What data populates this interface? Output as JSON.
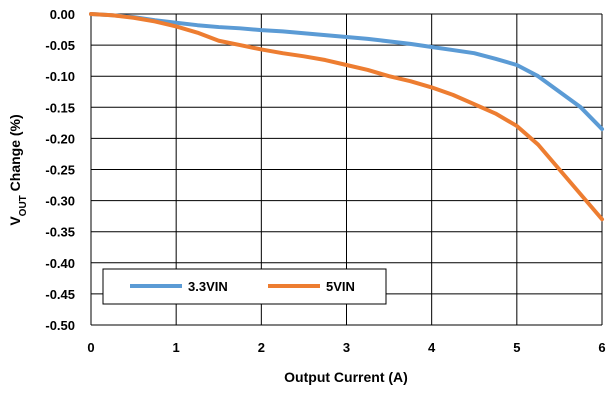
{
  "chart_data": {
    "type": "line",
    "xlabel": "Output Current (A)",
    "ylabel": {
      "prefix": "V",
      "subscript": "OUT",
      "suffix": " Change (%)"
    },
    "xlim": [
      0,
      6
    ],
    "ylim": [
      -0.5,
      0.0
    ],
    "x_ticks": [
      0,
      1,
      2,
      3,
      4,
      5,
      6
    ],
    "y_ticks": [
      0.0,
      -0.05,
      -0.1,
      -0.15,
      -0.2,
      -0.25,
      -0.3,
      -0.35,
      -0.4,
      -0.45,
      -0.5
    ],
    "x_tick_labels": [
      "0",
      "1",
      "2",
      "3",
      "4",
      "5",
      "6"
    ],
    "y_tick_labels": [
      "0.00",
      "-0.05",
      "-0.10",
      "-0.15",
      "-0.20",
      "-0.25",
      "-0.30",
      "-0.35",
      "-0.40",
      "-0.45",
      "-0.50"
    ],
    "grid": true,
    "legend_position": "lower-left",
    "series": [
      {
        "name": "3.3VIN",
        "color": "#5b9bd5",
        "x": [
          0,
          0.25,
          0.5,
          0.75,
          1.0,
          1.25,
          1.5,
          1.75,
          2.0,
          2.25,
          2.5,
          2.75,
          3.0,
          3.25,
          3.5,
          3.75,
          4.0,
          4.25,
          4.5,
          4.75,
          5.0,
          5.25,
          5.5,
          5.75,
          6.0
        ],
        "values": [
          0.0,
          -0.002,
          -0.005,
          -0.01,
          -0.014,
          -0.018,
          -0.021,
          -0.023,
          -0.026,
          -0.028,
          -0.031,
          -0.034,
          -0.037,
          -0.04,
          -0.044,
          -0.048,
          -0.053,
          -0.058,
          -0.063,
          -0.072,
          -0.082,
          -0.1,
          -0.125,
          -0.15,
          -0.185
        ]
      },
      {
        "name": "5VIN",
        "color": "#ed7d31",
        "x": [
          0,
          0.25,
          0.5,
          0.75,
          1.0,
          1.25,
          1.5,
          1.75,
          2.0,
          2.25,
          2.5,
          2.75,
          3.0,
          3.25,
          3.5,
          3.75,
          4.0,
          4.25,
          4.5,
          4.75,
          5.0,
          5.25,
          5.5,
          5.75,
          6.0
        ],
        "values": [
          0.0,
          -0.002,
          -0.006,
          -0.012,
          -0.02,
          -0.03,
          -0.043,
          -0.05,
          -0.057,
          -0.063,
          -0.068,
          -0.074,
          -0.082,
          -0.09,
          -0.1,
          -0.108,
          -0.118,
          -0.13,
          -0.145,
          -0.16,
          -0.18,
          -0.21,
          -0.25,
          -0.29,
          -0.33
        ]
      }
    ]
  }
}
